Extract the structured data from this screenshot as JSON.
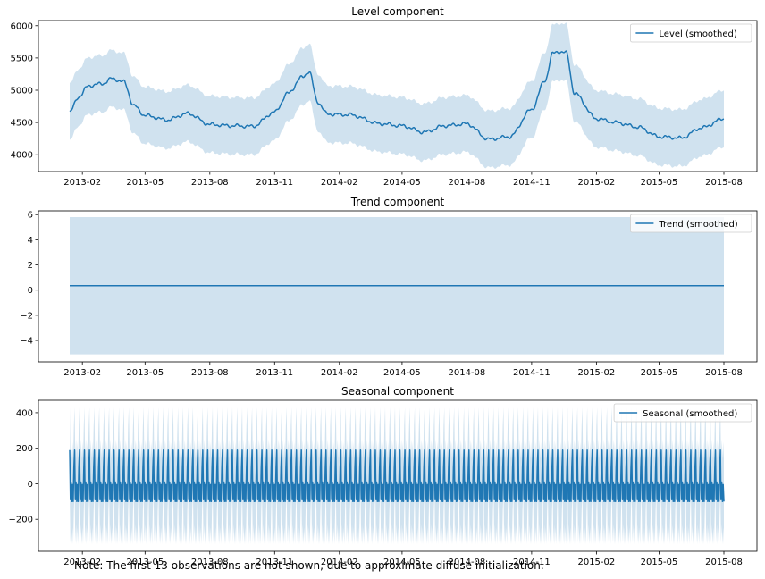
{
  "chart_data": [
    {
      "type": "line",
      "title": "Level component",
      "series": [
        {
          "name": "Level (smoothed)",
          "color": "#1f77b4"
        }
      ],
      "x_tick_labels": [
        "2013-02",
        "2013-05",
        "2013-08",
        "2013-11",
        "2014-02",
        "2014-05",
        "2014-08",
        "2014-11",
        "2015-02",
        "2015-05",
        "2015-08"
      ],
      "y_ticks": [
        4000,
        4500,
        5000,
        5500,
        6000
      ],
      "ylim": [
        3740,
        6080
      ],
      "x_start": "2013-01-14",
      "x_end": "2015-08-01",
      "keypoints": [
        {
          "x": "2013-01-14",
          "y": 4660
        },
        {
          "x": "2013-01-27",
          "y": 4900
        },
        {
          "x": "2013-02-10",
          "y": 5070
        },
        {
          "x": "2013-03-01",
          "y": 5100
        },
        {
          "x": "2013-03-15",
          "y": 5180
        },
        {
          "x": "2013-04-01",
          "y": 5130
        },
        {
          "x": "2013-04-15",
          "y": 4760
        },
        {
          "x": "2013-05-01",
          "y": 4610
        },
        {
          "x": "2013-06-01",
          "y": 4540
        },
        {
          "x": "2013-07-01",
          "y": 4640
        },
        {
          "x": "2013-08-01",
          "y": 4470
        },
        {
          "x": "2013-09-01",
          "y": 4450
        },
        {
          "x": "2013-10-01",
          "y": 4440
        },
        {
          "x": "2013-11-01",
          "y": 4660
        },
        {
          "x": "2013-11-20",
          "y": 4950
        },
        {
          "x": "2013-12-10",
          "y": 5200
        },
        {
          "x": "2013-12-20",
          "y": 5290
        },
        {
          "x": "2014-01-01",
          "y": 4820
        },
        {
          "x": "2014-01-15",
          "y": 4630
        },
        {
          "x": "2014-02-15",
          "y": 4620
        },
        {
          "x": "2014-04-01",
          "y": 4480
        },
        {
          "x": "2014-05-01",
          "y": 4450
        },
        {
          "x": "2014-06-01",
          "y": 4350
        },
        {
          "x": "2014-07-01",
          "y": 4450
        },
        {
          "x": "2014-08-01",
          "y": 4480
        },
        {
          "x": "2014-09-01",
          "y": 4240
        },
        {
          "x": "2014-10-01",
          "y": 4280
        },
        {
          "x": "2014-11-01",
          "y": 4700
        },
        {
          "x": "2014-11-20",
          "y": 5150
        },
        {
          "x": "2014-12-01",
          "y": 5570
        },
        {
          "x": "2014-12-10",
          "y": 5600
        },
        {
          "x": "2014-12-20",
          "y": 5580
        },
        {
          "x": "2015-01-01",
          "y": 4950
        },
        {
          "x": "2015-02-01",
          "y": 4560
        },
        {
          "x": "2015-03-01",
          "y": 4500
        },
        {
          "x": "2015-04-01",
          "y": 4430
        },
        {
          "x": "2015-05-01",
          "y": 4280
        },
        {
          "x": "2015-06-01",
          "y": 4260
        },
        {
          "x": "2015-07-01",
          "y": 4420
        },
        {
          "x": "2015-08-01",
          "y": 4560
        }
      ],
      "band_halfwidth": 440,
      "grid": false,
      "legend_position": "top-right"
    },
    {
      "type": "line",
      "title": "Trend component",
      "series": [
        {
          "name": "Trend (smoothed)",
          "color": "#1f77b4"
        }
      ],
      "x_tick_labels": [
        "2013-02",
        "2013-05",
        "2013-08",
        "2013-11",
        "2014-02",
        "2014-05",
        "2014-08",
        "2014-11",
        "2015-02",
        "2015-05",
        "2015-08"
      ],
      "y_ticks": [
        -4,
        -2,
        0,
        2,
        4,
        6
      ],
      "ylim": [
        -5.7,
        6.3
      ],
      "x_start": "2013-01-14",
      "x_end": "2015-08-01",
      "value": 0.35,
      "band": [
        -5.1,
        5.8
      ],
      "grid": false,
      "legend_position": "top-right"
    },
    {
      "type": "line",
      "title": "Seasonal component",
      "series": [
        {
          "name": "Seasonal (smoothed)",
          "color": "#1f77b4"
        }
      ],
      "x_tick_labels": [
        "2013-02",
        "2013-05",
        "2013-08",
        "2013-11",
        "2014-02",
        "2014-05",
        "2014-08",
        "2014-11",
        "2015-02",
        "2015-05",
        "2015-08"
      ],
      "y_ticks": [
        -200,
        0,
        200,
        400
      ],
      "ylim": [
        -380,
        470
      ],
      "x_start": "2013-01-14",
      "x_end": "2015-08-01",
      "weekly_pattern": [
        190,
        -90,
        10,
        -100,
        -5,
        -100,
        90
      ],
      "band_halfwidth": 240,
      "grid": false,
      "legend_position": "top-right"
    }
  ],
  "note": "Note: The first 13 observations are not shown, due to approximate diffuse initialization."
}
